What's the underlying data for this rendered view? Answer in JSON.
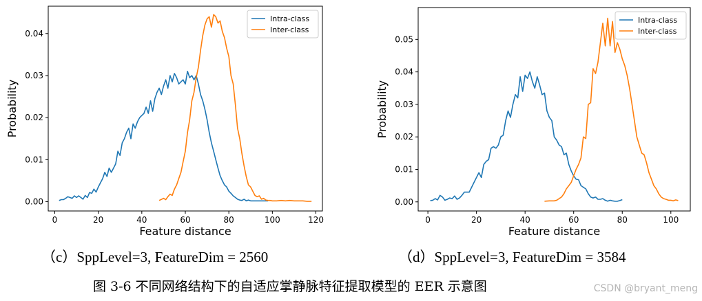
{
  "colors": {
    "intra": "#1f77b4",
    "inter": "#ff7f0e"
  },
  "chart_data": [
    {
      "type": "line",
      "xlabel": "Feature distance",
      "ylabel": "Probability",
      "xlim": [
        -3,
        123
      ],
      "ylim": [
        -0.0022,
        0.0465
      ],
      "xticks": [
        0,
        20,
        40,
        60,
        80,
        100,
        120
      ],
      "yticks": [
        0.0,
        0.01,
        0.02,
        0.03,
        0.04
      ],
      "ytick_labels": [
        "0.00",
        "0.01",
        "0.02",
        "0.03",
        "0.04"
      ],
      "legend": "top-right",
      "caption": "（c）SppLevel=3, FeatureDim = 2560",
      "series": [
        {
          "name": "Intra-class",
          "color": "#1f77b4",
          "x": [
            2,
            3,
            4,
            5,
            6,
            7,
            8,
            9,
            10,
            11,
            12,
            13,
            14,
            15,
            16,
            17,
            18,
            19,
            20,
            21,
            22,
            23,
            24,
            25,
            26,
            27,
            28,
            29,
            30,
            31,
            32,
            33,
            34,
            35,
            36,
            37,
            38,
            39,
            40,
            41,
            42,
            43,
            44,
            45,
            46,
            47,
            48,
            49,
            50,
            51,
            52,
            53,
            54,
            55,
            56,
            57,
            58,
            59,
            60,
            61,
            62,
            63,
            64,
            65,
            66,
            67,
            68,
            69,
            70,
            71,
            72,
            73,
            74,
            75,
            76,
            77,
            78,
            79,
            80,
            81,
            82,
            83,
            84,
            85,
            86,
            87,
            88,
            89,
            90,
            92,
            94,
            96,
            98
          ],
          "y": [
            0.0003,
            0.0005,
            0.0005,
            0.0008,
            0.0012,
            0.001,
            0.0008,
            0.0014,
            0.001,
            0.0014,
            0.001,
            0.0006,
            0.0015,
            0.001,
            0.0022,
            0.002,
            0.003,
            0.0023,
            0.0035,
            0.0045,
            0.0055,
            0.007,
            0.006,
            0.008,
            0.007,
            0.008,
            0.009,
            0.012,
            0.011,
            0.014,
            0.015,
            0.0165,
            0.0175,
            0.015,
            0.0185,
            0.0175,
            0.019,
            0.02,
            0.0205,
            0.021,
            0.0225,
            0.021,
            0.024,
            0.0215,
            0.0245,
            0.026,
            0.027,
            0.0255,
            0.0275,
            0.029,
            0.027,
            0.03,
            0.0285,
            0.0305,
            0.0295,
            0.028,
            0.0285,
            0.029,
            0.028,
            0.031,
            0.0295,
            0.03,
            0.029,
            0.03,
            0.028,
            0.0255,
            0.024,
            0.022,
            0.0195,
            0.0165,
            0.014,
            0.012,
            0.01,
            0.008,
            0.0062,
            0.005,
            0.004,
            0.0035,
            0.0025,
            0.002,
            0.0014,
            0.001,
            0.0006,
            0.0004,
            0.0003,
            0.0006,
            0.0002,
            0.0004,
            0.0002,
            0.0002,
            0.0002,
            0.0002,
            0.0002
          ]
        },
        {
          "name": "Inter-class",
          "color": "#ff7f0e",
          "x": [
            48,
            50,
            51,
            52,
            53,
            54,
            55,
            56,
            57,
            58,
            59,
            60,
            61,
            62,
            63,
            64,
            65,
            66,
            67,
            68,
            69,
            70,
            71,
            72,
            73,
            74,
            75,
            76,
            77,
            78,
            79,
            80,
            81,
            82,
            83,
            84,
            85,
            86,
            87,
            88,
            89,
            90,
            91,
            92,
            93,
            94,
            95,
            96,
            97,
            98,
            99,
            100,
            102,
            104,
            106,
            108,
            110,
            112,
            114,
            116,
            118
          ],
          "y": [
            0.0003,
            0.0008,
            0.0005,
            0.0012,
            0.0018,
            0.0015,
            0.003,
            0.004,
            0.0055,
            0.007,
            0.0095,
            0.012,
            0.0165,
            0.0195,
            0.024,
            0.026,
            0.0295,
            0.032,
            0.036,
            0.0395,
            0.042,
            0.0435,
            0.044,
            0.0415,
            0.0445,
            0.044,
            0.0425,
            0.043,
            0.0405,
            0.039,
            0.0365,
            0.0345,
            0.03,
            0.028,
            0.023,
            0.0175,
            0.015,
            0.0115,
            0.0085,
            0.006,
            0.004,
            0.0035,
            0.0025,
            0.0015,
            0.0012,
            0.0014,
            0.0006,
            0.0008,
            0.0004,
            0.0003,
            0.0003,
            0.0002,
            0.0002,
            0.0003,
            0.0002,
            0.0003,
            0.0002,
            0.0002,
            0.0002,
            0.0001,
            0.0001
          ]
        }
      ]
    },
    {
      "type": "line",
      "xlabel": "Feature distance",
      "ylabel": "Probability",
      "xlim": [
        -4,
        108
      ],
      "ylim": [
        -0.0028,
        0.0598
      ],
      "xticks": [
        0,
        20,
        40,
        60,
        80,
        100
      ],
      "yticks": [
        0.0,
        0.01,
        0.02,
        0.03,
        0.04,
        0.05
      ],
      "ytick_labels": [
        "0.00",
        "0.01",
        "0.02",
        "0.03",
        "0.04",
        "0.05"
      ],
      "legend": "top-right",
      "caption": "（d）SppLevel=3, FeatureDim = 3584",
      "series": [
        {
          "name": "Intra-class",
          "color": "#1f77b4",
          "x": [
            1,
            2,
            3,
            4,
            5,
            6,
            7,
            8,
            9,
            10,
            11,
            12,
            13,
            14,
            15,
            16,
            17,
            18,
            19,
            20,
            21,
            22,
            23,
            24,
            25,
            26,
            27,
            28,
            29,
            30,
            31,
            32,
            33,
            34,
            35,
            36,
            37,
            38,
            39,
            40,
            41,
            42,
            43,
            44,
            45,
            46,
            47,
            48,
            49,
            50,
            51,
            52,
            53,
            54,
            55,
            56,
            57,
            58,
            59,
            60,
            61,
            62,
            63,
            64,
            65,
            66,
            67,
            68,
            69,
            70,
            71,
            72,
            73,
            74,
            75,
            76,
            77,
            78,
            79,
            80
          ],
          "y": [
            0.0004,
            0.0005,
            0.001,
            0.0006,
            0.002,
            0.0015,
            0.0005,
            0.0008,
            0.0012,
            0.001,
            0.0018,
            0.0008,
            0.0012,
            0.002,
            0.003,
            0.003,
            0.003,
            0.0045,
            0.006,
            0.0075,
            0.009,
            0.0075,
            0.0115,
            0.0125,
            0.013,
            0.0165,
            0.017,
            0.0165,
            0.0175,
            0.02,
            0.0205,
            0.025,
            0.028,
            0.026,
            0.03,
            0.033,
            0.032,
            0.0385,
            0.034,
            0.039,
            0.038,
            0.04,
            0.037,
            0.035,
            0.0385,
            0.036,
            0.033,
            0.0335,
            0.028,
            0.026,
            0.025,
            0.02,
            0.019,
            0.0175,
            0.017,
            0.0145,
            0.015,
            0.0115,
            0.0095,
            0.008,
            0.007,
            0.0068,
            0.005,
            0.0045,
            0.004,
            0.0025,
            0.0015,
            0.0012,
            0.0015,
            0.0008,
            0.0008,
            0.001,
            0.0005,
            0.0002,
            0.0005,
            0.0003,
            0.0002,
            0.0002,
            0.0004,
            0.0007
          ]
        },
        {
          "name": "Inter-class",
          "color": "#ff7f0e",
          "x": [
            48,
            50,
            52,
            53,
            54,
            55,
            56,
            57,
            58,
            59,
            60,
            61,
            62,
            63,
            64,
            65,
            66,
            67,
            68,
            69,
            70,
            71,
            72,
            73,
            74,
            75,
            76,
            77,
            78,
            79,
            80,
            81,
            82,
            83,
            84,
            85,
            86,
            87,
            88,
            89,
            90,
            91,
            92,
            93,
            94,
            95,
            96,
            97,
            98,
            99,
            100,
            101,
            102,
            103
          ],
          "y": [
            0.0002,
            0.0003,
            0.0003,
            0.0005,
            0.001,
            0.0015,
            0.0025,
            0.004,
            0.005,
            0.006,
            0.008,
            0.01,
            0.0115,
            0.0135,
            0.02,
            0.0195,
            0.03,
            0.0305,
            0.041,
            0.0395,
            0.043,
            0.049,
            0.055,
            0.048,
            0.0565,
            0.048,
            0.0555,
            0.046,
            0.049,
            0.047,
            0.044,
            0.042,
            0.039,
            0.035,
            0.03,
            0.025,
            0.02,
            0.0175,
            0.015,
            0.0145,
            0.012,
            0.009,
            0.007,
            0.005,
            0.004,
            0.0025,
            0.0015,
            0.001,
            0.0008,
            0.0005,
            0.0005,
            0.0003,
            0.0006,
            0.0004
          ]
        }
      ]
    }
  ],
  "figure_caption": "图 3-6  不同网络结构下的自适应掌静脉特征提取模型的 EER 示意图",
  "watermark": "CSDN @bryant_meng"
}
